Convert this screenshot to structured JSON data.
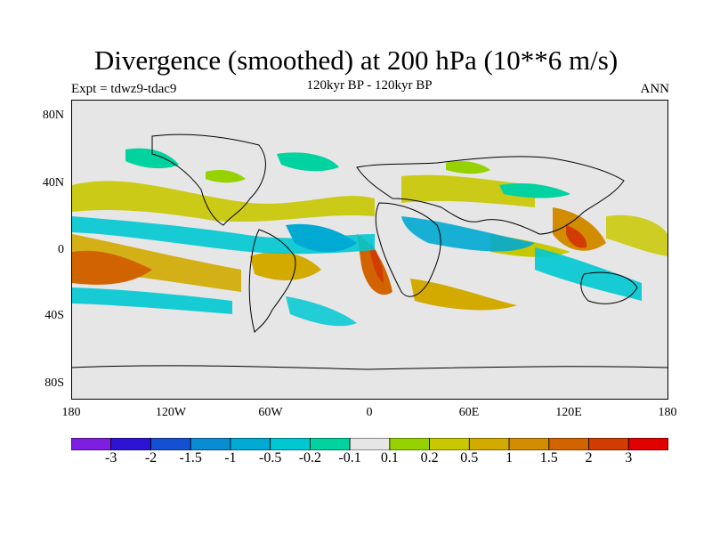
{
  "title": "Divergence (smoothed) at 200 hPa (10**6 m/s)",
  "experiment": "Expt = tdwz9-tdac9",
  "subtitle": "120kyr BP - 120kyr BP",
  "season": "ANN",
  "y_ticks": [
    "80N",
    "40N",
    "0",
    "40S",
    "80S"
  ],
  "x_ticks": [
    "180",
    "120W",
    "60W",
    "0",
    "60E",
    "120E",
    "180"
  ],
  "colorbar": {
    "colors": [
      "#7d1ee0",
      "#2d14d2",
      "#1450d2",
      "#0a8cd2",
      "#00aad2",
      "#00c8d2",
      "#00d2a0",
      "#e6e6e6",
      "#96d200",
      "#c8c800",
      "#d2aa00",
      "#d28c00",
      "#d26400",
      "#d23c00",
      "#e10000"
    ],
    "labels": [
      "-3",
      "-2",
      "-1.5",
      "-1",
      "-0.5",
      "-0.2",
      "-0.1",
      "0.1",
      "0.2",
      "0.5",
      "1",
      "1.5",
      "2",
      "3"
    ]
  }
}
